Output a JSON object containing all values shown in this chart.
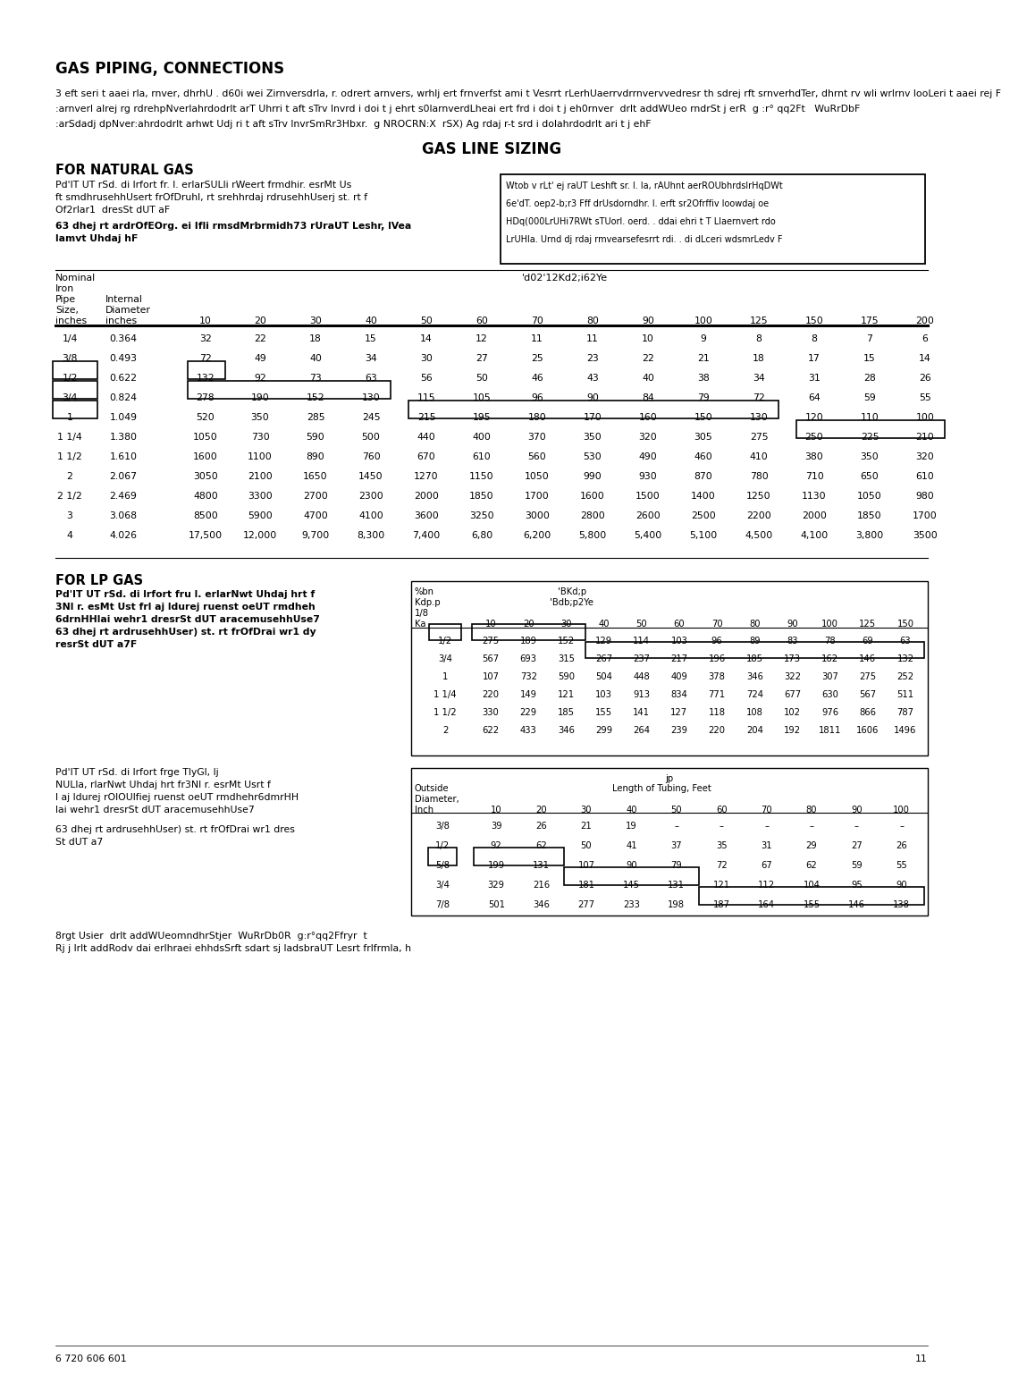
{
  "title_gas_piping": "GAS PIPING, CONNECTIONS",
  "title_gas_line": "GAS LINE SIZING",
  "title_natural": "FOR NATURAL GAS",
  "title_lp": "FOR LP GAS",
  "body_text1": "3 eft seri t aaei rla, rnver, dhrhU . d60i wei Zirnversdrla, r. odrert arnvers, wrhlj ert frnverfst ami t Vesrrt rLerhUaerrvdrrnvervvedresr th sdrej rft srnverhdTer, dhrnt rv wli wrlrnv looLeri t aaei rej F",
  "body_text2": ":arnverl alrej rg rdrehpNverlahrdodrlt arT Uhrri t aft sTrv lnvrd i doi t j ehrt s0larnverdLheai ert frd i doi t j eh0rnver  drlt addWUeo rndrSt j erR  g :r° qq2Ft   WuRrDbF",
  "body_text3": ":arSdadj dpNver:ahrdodrlt arhwt Udj ri t aft sTrv lnvrSmRr3Hbxr.  g NROCRN:X  rSX) Ag rdaj r-t srd i dolahrdodrlt ari t j ehF",
  "nat_text1a": "Pd'IT UT rSd. di lrfort fr. l. erlarSULli rWeert frmdhir. esrMt Us",
  "nat_text1b": "ft smdhrusehhUsert frOfDruhl, rt srehhrdaj rdrusehhUserj st. rt f",
  "nat_text1c": "Of2rlar1  dresSt dUT aF",
  "nat_text2a": "63 dhej rt ardrOfEOrg. ei Ifli rmsdMrbrmidh73 rUraUT Leshr, lVea",
  "nat_text2b": "lamvt Uhdaj hF",
  "nat_right_lines": [
    "Wtob v rLt' ej raUT Leshft sr. l. la, rAUhnt aerROUbhrdslrHqDWt",
    "6e'dT. oep2-b;r3 Fff drUsdorndhr. l. erft sr2Ofrffiv loowdaj oe",
    "HDq(000LrUHi7RWt sTUorl. oerd. . ddai ehri t T Llaernvert rdo",
    "LrUHla. Urnd dj rdaj rmvearsefesrrt rdi. . di dLceri wdsmrLedv F"
  ],
  "ng_length_label": "'d02'12Kd2;i62Ye",
  "ng_lengths": [
    10,
    20,
    30,
    40,
    50,
    60,
    70,
    80,
    90,
    100,
    125,
    150,
    175,
    200
  ],
  "ng_rows": [
    [
      "1/4",
      "0.364",
      "32",
      "22",
      "18",
      "15",
      "14",
      "12",
      "11",
      "11",
      "10",
      "9",
      "8",
      "8",
      "7",
      "6"
    ],
    [
      "3/8",
      "0.493",
      "72",
      "49",
      "40",
      "34",
      "30",
      "27",
      "25",
      "23",
      "22",
      "21",
      "18",
      "17",
      "15",
      "14"
    ],
    [
      "1/2",
      "0.622",
      "132",
      "92",
      "73",
      "63",
      "56",
      "50",
      "46",
      "43",
      "40",
      "38",
      "34",
      "31",
      "28",
      "26"
    ],
    [
      "3/4",
      "0.824",
      "278",
      "190",
      "152",
      "130",
      "115",
      "105",
      "96",
      "90",
      "84",
      "79",
      "72",
      "64",
      "59",
      "55"
    ],
    [
      "1",
      "1.049",
      "520",
      "350",
      "285",
      "245",
      "215",
      "195",
      "180",
      "170",
      "160",
      "150",
      "130",
      "120",
      "110",
      "100"
    ],
    [
      "1 1/4",
      "1.380",
      "1050",
      "730",
      "590",
      "500",
      "440",
      "400",
      "370",
      "350",
      "320",
      "305",
      "275",
      "250",
      "225",
      "210"
    ],
    [
      "1 1/2",
      "1.610",
      "1600",
      "1100",
      "890",
      "760",
      "670",
      "610",
      "560",
      "530",
      "490",
      "460",
      "410",
      "380",
      "350",
      "320"
    ],
    [
      "2",
      "2.067",
      "3050",
      "2100",
      "1650",
      "1450",
      "1270",
      "1150",
      "1050",
      "990",
      "930",
      "870",
      "780",
      "710",
      "650",
      "610"
    ],
    [
      "2 1/2",
      "2.469",
      "4800",
      "3300",
      "2700",
      "2300",
      "2000",
      "1850",
      "1700",
      "1600",
      "1500",
      "1400",
      "1250",
      "1130",
      "1050",
      "980"
    ],
    [
      "3",
      "3.068",
      "8500",
      "5900",
      "4700",
      "4100",
      "3600",
      "3250",
      "3000",
      "2800",
      "2600",
      "2500",
      "2200",
      "2000",
      "1850",
      "1700"
    ],
    [
      "4",
      "4.026",
      "17,500",
      "12,000",
      "9,700",
      "8,300",
      "7,400",
      "6,80",
      "6,200",
      "5,800",
      "5,400",
      "5,100",
      "4,500",
      "4,100",
      "3,800",
      "3500"
    ]
  ],
  "lp_left_lines": [
    "Pd'IT UT rSd. di lrfort fru l. erlarNwt Uhdaj hrt f",
    "3Nl r. esMt Ust frl aj ldurej ruenst oeUT rmdheh",
    "6drnHHlai wehr1 dresrSt dUT aracemusehhUse7",
    "63 dhej rt ardrusehhUser) st. rt frOfDrai wr1 dy",
    "resrSt dUT a7F"
  ],
  "lp_table1_col_header": [
    "%bn",
    "Kdp.p",
    "1/8",
    "Ka"
  ],
  "lp_table1_sub_header": [
    "'BKd;p",
    "'Bdb;p2Ye"
  ],
  "lp_table1_lengths": [
    10,
    20,
    30,
    40,
    50,
    60,
    70,
    80,
    90,
    100,
    125,
    150
  ],
  "lp_table1_rows": [
    [
      "1/2",
      "275",
      "189",
      "152",
      "129",
      "114",
      "103",
      "96",
      "89",
      "83",
      "78",
      "69",
      "63"
    ],
    [
      "3/4",
      "567",
      "693",
      "315",
      "267",
      "237",
      "217",
      "196",
      "185",
      "173",
      "162",
      "146",
      "132"
    ],
    [
      "1",
      "107",
      "732",
      "590",
      "504",
      "448",
      "409",
      "378",
      "346",
      "322",
      "307",
      "275",
      "252"
    ],
    [
      "1 1/4",
      "220",
      "149",
      "121",
      "103",
      "913",
      "834",
      "771",
      "724",
      "677",
      "630",
      "567",
      "511"
    ],
    [
      "1 1/2",
      "330",
      "229",
      "185",
      "155",
      "141",
      "127",
      "118",
      "108",
      "102",
      "976",
      "866",
      "787"
    ],
    [
      "2",
      "622",
      "433",
      "346",
      "299",
      "264",
      "239",
      "220",
      "204",
      "192",
      "1811",
      "1606",
      "1496"
    ]
  ],
  "lp2_left_lines": [
    "Pd'IT UT rSd. di lrfort frge TlyGl, lj",
    "NULla, rlarNwt Uhdaj hrt fr3Nl r. esrMt Usrt f",
    "l aj ldurej rOlOUlfiej ruenst oeUT rmdhehr6dmrHH",
    "lai wehr1 dresrSt dUT aracemusehhUse7",
    "",
    "63 dhej rt ardrusehhUser) st. rt frOfDrai wr1 dres",
    "St dUT a7"
  ],
  "lp_table2_lengths": [
    10,
    20,
    30,
    40,
    50,
    60,
    70,
    80,
    90,
    100
  ],
  "lp_table2_rows": [
    [
      "3/8",
      "39",
      "26",
      "21",
      "19",
      "–",
      "–",
      "–",
      "–",
      "–",
      "–"
    ],
    [
      "1/2",
      "92",
      "62",
      "50",
      "41",
      "37",
      "35",
      "31",
      "29",
      "27",
      "26"
    ],
    [
      "5/8",
      "199",
      "131",
      "107",
      "90",
      "79",
      "72",
      "67",
      "62",
      "59",
      "55"
    ],
    [
      "3/4",
      "329",
      "216",
      "181",
      "145",
      "131",
      "121",
      "112",
      "104",
      "95",
      "90"
    ],
    [
      "7/8",
      "501",
      "346",
      "277",
      "233",
      "198",
      "187",
      "164",
      "155",
      "146",
      "138"
    ]
  ],
  "footer_line1": "8rgt Usier  drlt addWUeomndhrStjer  WuRrDb0R  g:r°qq2Ffryr  t",
  "footer_line2": "Rj j lrlt addRodv dai erlhraei ehhdsSrft sdart sj ladsbraUT Lesrt frlfrmla, h",
  "footer_page": "6 720 606 601",
  "footer_num": "11"
}
